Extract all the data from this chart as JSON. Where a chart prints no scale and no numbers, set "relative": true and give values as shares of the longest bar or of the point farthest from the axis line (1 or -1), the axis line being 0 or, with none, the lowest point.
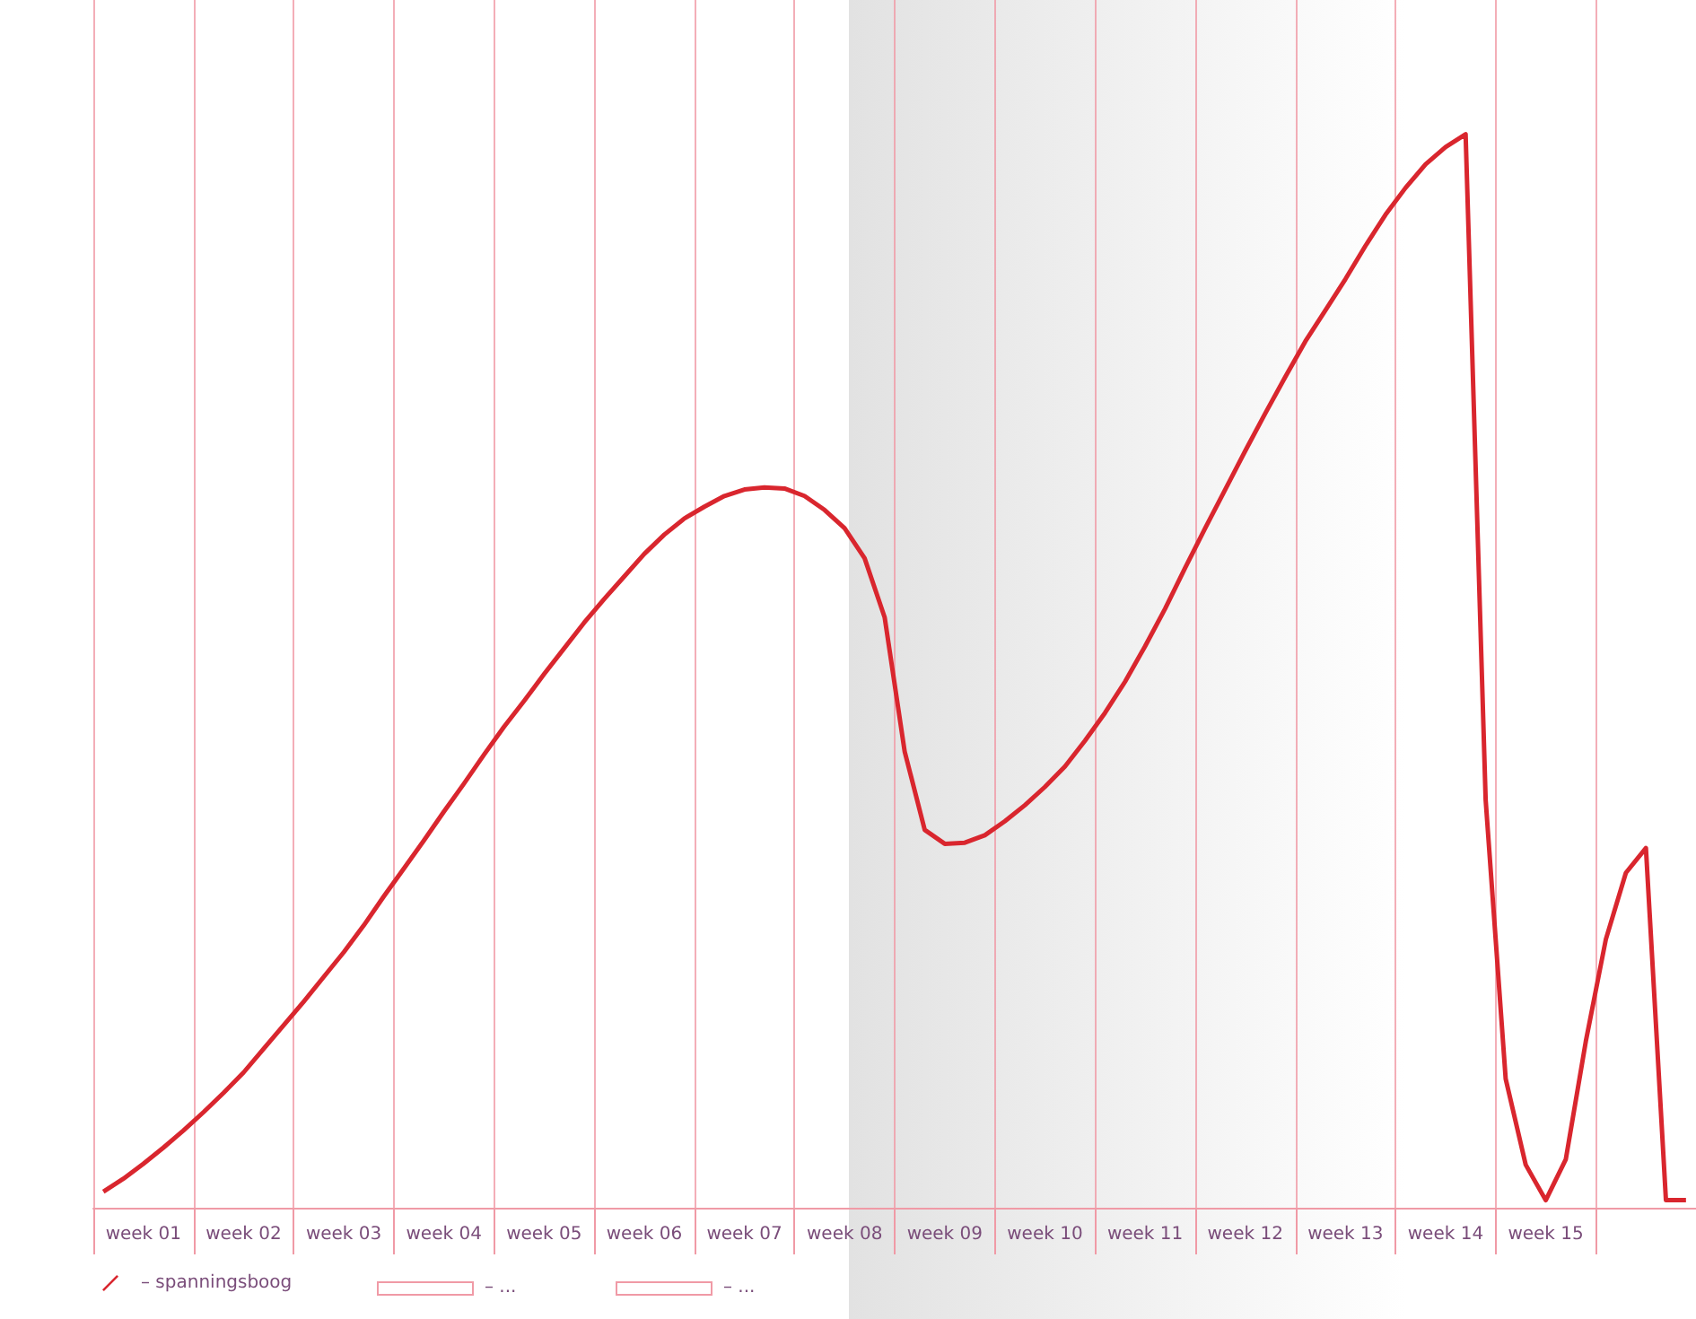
{
  "chart_data": {
    "type": "line",
    "relative": true,
    "categories": [
      null,
      null,
      "week 01",
      null,
      null,
      null,
      null,
      "week 02",
      null,
      null,
      null,
      null,
      "week 03",
      null,
      null,
      null,
      null,
      "week 04",
      null,
      null,
      null,
      null,
      "week 05",
      null,
      null,
      null,
      null,
      "week 06",
      null,
      null,
      null,
      null,
      "week 07",
      null,
      null,
      null,
      null,
      "week 08",
      null,
      null,
      null,
      null,
      "week 09",
      null,
      null,
      null,
      null,
      "week 10",
      null,
      null,
      null,
      null,
      "week 11",
      null,
      null,
      null,
      null,
      "week 12",
      null,
      null,
      null,
      null,
      "week 13",
      null,
      null,
      null,
      null,
      "week 14",
      null,
      null,
      null,
      null,
      "week 15",
      null,
      null,
      null,
      null,
      null,
      null,
      null
    ],
    "series": [
      {
        "name": "– spanningsboog",
        "color": "#d9262e",
        "values": [
          0.015,
          0.027,
          0.041,
          0.056,
          0.072,
          0.089,
          0.107,
          0.126,
          0.148,
          0.17,
          0.192,
          0.215,
          0.238,
          0.263,
          0.29,
          0.316,
          0.342,
          0.369,
          0.395,
          0.422,
          0.448,
          0.472,
          0.497,
          0.521,
          0.545,
          0.567,
          0.588,
          0.609,
          0.627,
          0.642,
          0.653,
          0.663,
          0.669,
          0.671,
          0.67,
          0.663,
          0.65,
          0.633,
          0.605,
          0.55,
          0.425,
          0.352,
          0.339,
          0.34,
          0.347,
          0.36,
          0.375,
          0.392,
          0.411,
          0.435,
          0.461,
          0.49,
          0.523,
          0.558,
          0.596,
          0.633,
          0.669,
          0.705,
          0.74,
          0.774,
          0.807,
          0.836,
          0.865,
          0.896,
          0.925,
          0.95,
          0.972,
          0.988,
          1,
          0.38,
          0.12,
          0.04,
          0.007,
          0.045,
          0.155,
          0.25,
          0.312,
          0.335,
          0.007,
          0.007
        ]
      }
    ],
    "annotations": [
      "– ...",
      "– ..."
    ],
    "grid": "x",
    "legend": "bottom left",
    "marker": "none",
    "line_style": "solid"
  }
}
